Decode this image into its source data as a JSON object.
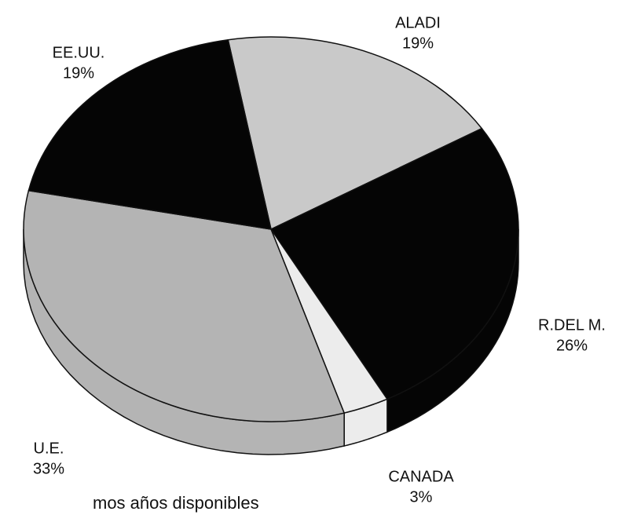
{
  "chart_data": {
    "type": "pie",
    "categories": [
      "ALADI",
      "R.DEL M.",
      "CANADA",
      "U.E.",
      "EE.UU."
    ],
    "values": [
      19,
      26,
      3,
      33,
      19
    ],
    "value_labels": [
      "19%",
      "26%",
      "3%",
      "33%",
      "19%"
    ],
    "colors": [
      "#c9c9c9",
      "#050505",
      "#ececec",
      "#b4b4b4",
      "#050505"
    ],
    "note": "mos años disponibles"
  }
}
